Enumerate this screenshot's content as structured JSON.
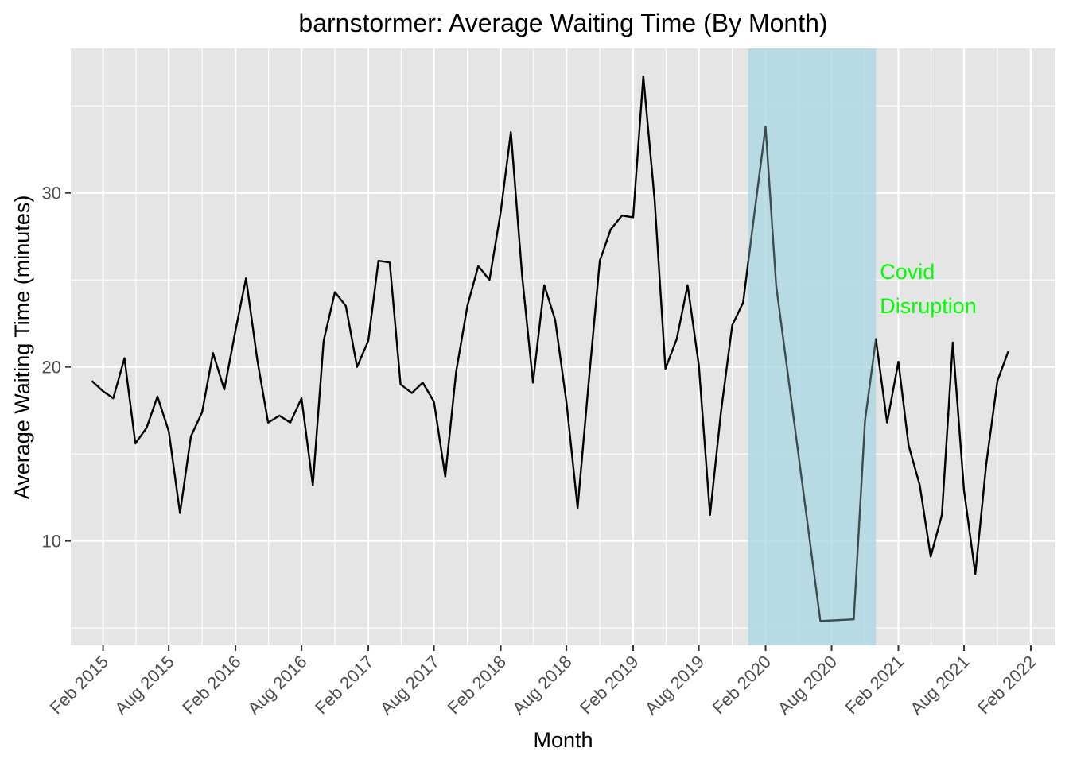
{
  "chart_data": {
    "type": "line",
    "title": "barnstormer: Average Waiting Time (By Month)",
    "xlabel": "Month",
    "ylabel": "Average Waiting Time (minutes)",
    "x_ticks": [
      "Feb 2015",
      "Aug 2015",
      "Feb 2016",
      "Aug 2016",
      "Feb 2017",
      "Aug 2017",
      "Feb 2018",
      "Aug 2018",
      "Feb 2019",
      "Aug 2019",
      "Feb 2020",
      "Aug 2020",
      "Feb 2021",
      "Aug 2021",
      "Feb 2022"
    ],
    "y_ticks": [
      10,
      20,
      30
    ],
    "ylim": [
      4,
      38.3
    ],
    "xlim": [
      "2014-11-04",
      "2022-04-10"
    ],
    "grid": true,
    "background": "#e5e5e5",
    "line_color": "#000000",
    "highlight": {
      "x_start": "2019-12-15",
      "x_end": "2020-12-01",
      "color": "#add8e6",
      "label_lines": [
        "Covid",
        "Disruption"
      ],
      "label_color": "#00ff00"
    },
    "series": [
      {
        "x": [
          "2015-01-01",
          "2015-02-01",
          "2015-03-01",
          "2015-04-01",
          "2015-05-01",
          "2015-06-01",
          "2015-07-01",
          "2015-08-01",
          "2015-09-01",
          "2015-10-01",
          "2015-11-01",
          "2015-12-01",
          "2016-01-01",
          "2016-02-01",
          "2016-03-01",
          "2016-04-01",
          "2016-05-01",
          "2016-06-01",
          "2016-07-01",
          "2016-08-01",
          "2016-09-01",
          "2016-10-01",
          "2016-11-01",
          "2016-12-01",
          "2017-01-01",
          "2017-02-01",
          "2017-03-01",
          "2017-04-01",
          "2017-05-01",
          "2017-06-01",
          "2017-07-01",
          "2017-08-01",
          "2017-09-01",
          "2017-10-01",
          "2017-11-01",
          "2017-12-01",
          "2018-01-01",
          "2018-02-01",
          "2018-03-01",
          "2018-04-01",
          "2018-05-01",
          "2018-06-01",
          "2018-07-01",
          "2018-08-01",
          "2018-09-01",
          "2018-10-01",
          "2018-11-01",
          "2018-12-01",
          "2019-01-01",
          "2019-02-01",
          "2019-03-01",
          "2019-04-01",
          "2019-05-01",
          "2019-06-01",
          "2019-07-01",
          "2019-08-01",
          "2019-09-01",
          "2019-10-01",
          "2019-11-01",
          "2019-12-01",
          "2020-01-01",
          "2020-02-01",
          "2020-03-01",
          "2020-07-01",
          "2020-10-01",
          "2020-11-01",
          "2020-12-01",
          "2021-01-01",
          "2021-02-01",
          "2021-03-01",
          "2021-04-01",
          "2021-05-01",
          "2021-06-01",
          "2021-07-01",
          "2021-08-01",
          "2021-09-01",
          "2021-10-01",
          "2021-11-01",
          "2021-12-01"
        ],
        "y": [
          19.2,
          18.6,
          18.2,
          20.5,
          15.6,
          16.5,
          18.3,
          16.3,
          11.6,
          16.0,
          17.4,
          20.8,
          18.7,
          22.1,
          25.1,
          20.4,
          16.8,
          17.2,
          16.8,
          18.2,
          13.2,
          21.5,
          24.3,
          23.5,
          20.0,
          21.5,
          26.1,
          26.0,
          19.0,
          18.5,
          19.1,
          18.0,
          13.7,
          19.7,
          23.5,
          25.8,
          25.0,
          28.9,
          33.5,
          25.2,
          19.1,
          24.7,
          22.7,
          18.0,
          11.9,
          19.0,
          26.1,
          27.9,
          28.7,
          28.6,
          36.7,
          29.6,
          19.9,
          21.6,
          24.7,
          20.1,
          11.5,
          17.4,
          22.4,
          23.7,
          28.8,
          33.8,
          24.7,
          5.4,
          5.5,
          16.9,
          21.6,
          16.8,
          20.3,
          15.5,
          13.2,
          9.1,
          11.5,
          21.4,
          12.9,
          8.1,
          14.4,
          19.2,
          20.9
        ]
      }
    ]
  }
}
